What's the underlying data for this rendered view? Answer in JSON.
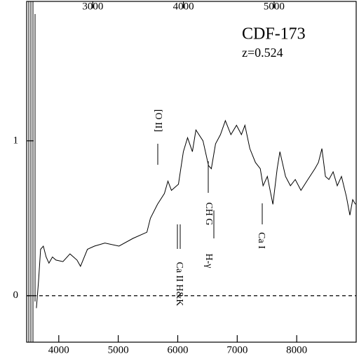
{
  "chart_data": {
    "type": "line",
    "title": "CDF-173",
    "subtitle": "z=0.524",
    "x": [
      3624,
      3659,
      3694,
      3741,
      3788,
      3835,
      3894,
      3953,
      4071,
      4188,
      4306,
      4365,
      4482,
      4600,
      4776,
      5012,
      5247,
      5482,
      5541,
      5659,
      5776,
      5835,
      5894,
      6012,
      6094,
      6165,
      6247,
      6306,
      6424,
      6518,
      6565,
      6635,
      6718,
      6800,
      6894,
      6988,
      7071,
      7129,
      7212,
      7306,
      7388,
      7435,
      7506,
      7600,
      7671,
      7718,
      7812,
      7894,
      7976,
      8071,
      8188,
      8306,
      8365,
      8424,
      8482,
      8541,
      8612,
      8682,
      8753,
      8835,
      8894,
      8941,
      8988
    ],
    "series": [
      {
        "color": "#000000",
        "values": [
          -0.08,
          0.09,
          0.3,
          0.32,
          0.25,
          0.21,
          0.25,
          0.23,
          0.22,
          0.27,
          0.23,
          0.19,
          0.3,
          0.32,
          0.34,
          0.32,
          0.37,
          0.41,
          0.5,
          0.59,
          0.66,
          0.74,
          0.68,
          0.72,
          0.93,
          1.02,
          0.93,
          1.07,
          1.0,
          0.84,
          0.82,
          0.98,
          1.04,
          1.13,
          1.04,
          1.1,
          1.04,
          1.1,
          0.95,
          0.86,
          0.82,
          0.71,
          0.77,
          0.59,
          0.82,
          0.93,
          0.77,
          0.71,
          0.75,
          0.68,
          0.75,
          0.82,
          0.86,
          0.95,
          0.77,
          0.75,
          0.8,
          0.71,
          0.77,
          0.64,
          0.52,
          0.62,
          0.59
        ]
      }
    ],
    "xlim": [
      3460,
      9000
    ],
    "xticks": [
      4000,
      5000,
      6000,
      7000,
      8000
    ],
    "x2lim": [
      2270,
      5906
    ],
    "x2ticks": [
      3000,
      4000,
      5000
    ],
    "ylim": [
      -0.3,
      1.9
    ],
    "yticks": [
      0,
      1
    ],
    "reference_line": 0,
    "annotations": [
      "[O II]",
      "CH G",
      "H-γ",
      "Ca I",
      "Ca II H&K"
    ]
  }
}
